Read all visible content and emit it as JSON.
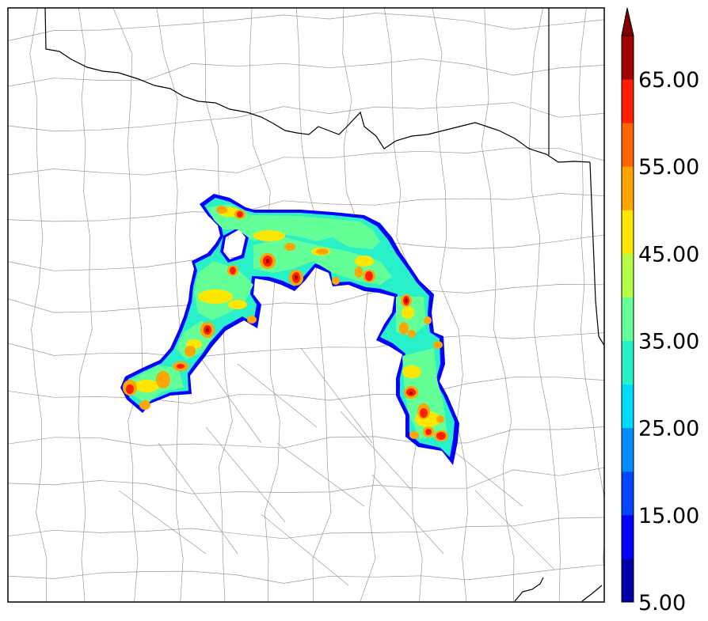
{
  "colorbar": {
    "levels": [
      5,
      10,
      15,
      20,
      25,
      30,
      35,
      40,
      45,
      50,
      55,
      60,
      65,
      70
    ],
    "colors": [
      "#0000a8",
      "#0000ff",
      "#0046ff",
      "#008cff",
      "#00dcff",
      "#28f0c8",
      "#64ff96",
      "#b4ff46",
      "#ffe600",
      "#ffa500",
      "#ff6400",
      "#ff1e00",
      "#a00000"
    ],
    "extend_color": "#800000",
    "tick_labels": [
      "5.00",
      "15.00",
      "25.00",
      "35.00",
      "45.00",
      "55.00",
      "65.00"
    ],
    "extend": "max"
  },
  "map": {
    "background": "#ffffff",
    "county_line_color": "#9a9a9a",
    "state_line_color": "#000000",
    "field_edge_color": "#0000ff"
  }
}
